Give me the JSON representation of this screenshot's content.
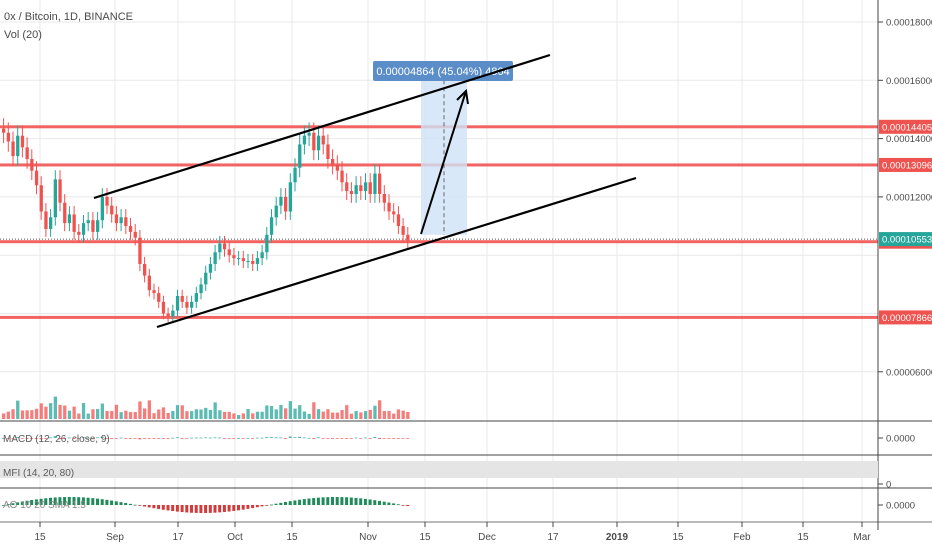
{
  "header": {
    "symbol": "0x / Bitcoin, 1D, BINANCE",
    "volume_label": "Vol (20)"
  },
  "indicators": {
    "macd_label": "MACD (12, 26, close, 9)",
    "mfi_label": "MFI (14, 20, 80)",
    "third_label": "AO 10 20 SMA 1.5"
  },
  "measure": {
    "label": "0.00004864 (45.04%) 4864",
    "bg_color": "#5b8ec9"
  },
  "colors": {
    "bull": "#26a69a",
    "bear": "#ef5350",
    "level_line": "#ef5350",
    "current_price_tag": "#26a69a",
    "grid": "#e8e8e8"
  },
  "chart_data": {
    "type": "candlestick",
    "title": "0x / Bitcoin, 1D, BINANCE",
    "ylim": [
      6e-05,
      0.000185
    ],
    "y_ticks": [
      "0.00018000",
      "0.00016000",
      "0.00014000",
      "0.00012000",
      "0.00006000"
    ],
    "x_ticks": [
      "15",
      "Sep",
      "17",
      "Oct",
      "15",
      "Nov",
      "15",
      "Dec",
      "17",
      "2019",
      "15",
      "Feb",
      "15",
      "Mar"
    ],
    "horizontal_levels": [
      {
        "label": "0.00014405",
        "value": 0.00014405
      },
      {
        "label": "0.00013096",
        "value": 0.00013096
      },
      {
        "label": "0.00010463",
        "value": 0.00010463
      },
      {
        "label": "0.00007866",
        "value": 7.866e-05
      }
    ],
    "last_price": {
      "label": "0.00010553",
      "value": 0.00010553
    },
    "trend_channel": {
      "upper": [
        [
          "Aug 27",
          0.000122
        ],
        [
          "Dec 6",
          0.000169
        ]
      ],
      "lower": [
        [
          "Sep 12",
          7.75e-05
        ],
        [
          "Dec 9",
          0.0001285
        ]
      ]
    },
    "candles_close": [
      0.000142,
      0.000139,
      0.000134,
      0.000141,
      0.000137,
      0.000133,
      0.000129,
      0.000124,
      0.000115,
      0.000109,
      0.000113,
      0.000126,
      0.000118,
      0.000111,
      0.000114,
      0.000108,
      0.000107,
      0.000111,
      0.000112,
      0.000108,
      0.000112,
      0.00012,
      0.000117,
      0.000114,
      0.000111,
      0.000113,
      0.00011,
      0.000108,
      0.000106,
      9.7e-05,
      9.3e-05,
      8.8e-05,
      8.7e-05,
      8.4e-05,
      8e-05,
      7.9e-05,
      8.1e-05,
      8.6e-05,
      8.4e-05,
      8.2e-05,
      8.4e-05,
      8.7e-05,
      9e-05,
      9.4e-05,
      9.7e-05,
      0.000101,
      0.000104,
      0.000102,
      0.0001,
      9.9e-05,
      9.9e-05,
      9.8e-05,
      9.8e-05,
      9.7e-05,
      9.9e-05,
      0.000101,
      0.000107,
      0.000113,
      0.000117,
      0.00012,
      0.000115,
      0.000125,
      0.00013,
      0.000138,
      0.000141,
      0.000142,
      0.000136,
      0.000141,
      0.000138,
      0.000133,
      0.000131,
      0.000129,
      0.000125,
      0.000122,
      0.000121,
      0.000124,
      0.000122,
      0.000125,
      0.000121,
      0.000128,
      0.000121,
      0.000118,
      0.000115,
      0.000114,
      0.00011,
      0.000107,
      0.000105
    ]
  }
}
